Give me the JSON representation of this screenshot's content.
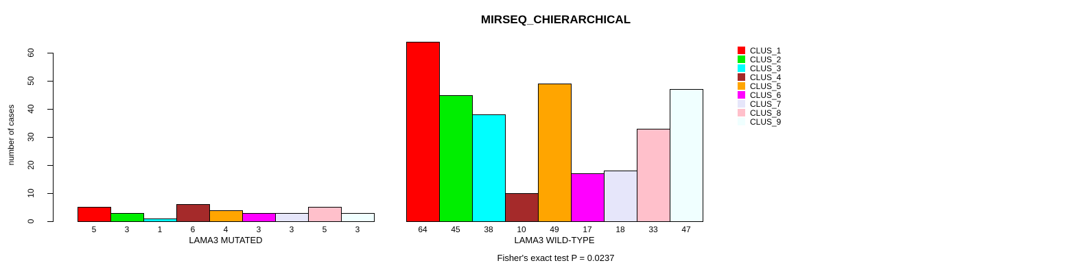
{
  "chart_data": {
    "type": "bar",
    "title": "MIRSEQ_CHIERARCHICAL",
    "ylabel": "number of cases",
    "ylim": [
      0,
      60
    ],
    "yticks": [
      0,
      10,
      20,
      30,
      40,
      50,
      60
    ],
    "grid": false,
    "legend_position": "right",
    "clusters": [
      {
        "name": "CLUS_1",
        "color": "#FF0000"
      },
      {
        "name": "CLUS_2",
        "color": "#00EE00"
      },
      {
        "name": "CLUS_3",
        "color": "#00FFFF"
      },
      {
        "name": "CLUS_4",
        "color": "#A52A2A"
      },
      {
        "name": "CLUS_5",
        "color": "#FFA500"
      },
      {
        "name": "CLUS_6",
        "color": "#FF00FF"
      },
      {
        "name": "CLUS_7",
        "color": "#E6E6FA"
      },
      {
        "name": "CLUS_8",
        "color": "#FFC0CB"
      },
      {
        "name": "CLUS_9",
        "color": "#F0FFFF"
      }
    ],
    "groups": [
      {
        "label": "LAMA3 MUTATED",
        "values": [
          5,
          3,
          1,
          6,
          4,
          3,
          3,
          5,
          3
        ]
      },
      {
        "label": "LAMA3 WILD-TYPE",
        "values": [
          64,
          45,
          38,
          10,
          49,
          17,
          18,
          33,
          47
        ]
      }
    ],
    "annotation": "Fisher's exact test P = 0.0237"
  }
}
